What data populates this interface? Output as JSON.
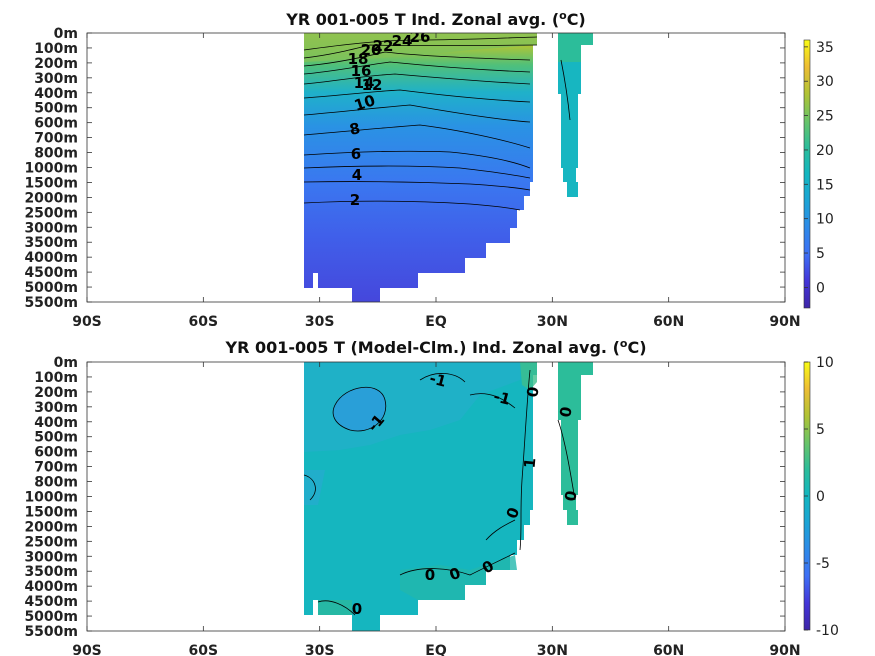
{
  "chart_data": [
    {
      "type": "heatmap",
      "title": "YR 001-005 T Ind. Zonal avg. (",
      "title_unit_sup": "o",
      "title_unit_tail": "C)",
      "x_ticks": [
        "90S",
        "60S",
        "30S",
        "EQ",
        "30N",
        "60N",
        "90N"
      ],
      "y_ticks": [
        "0m",
        "100m",
        "200m",
        "300m",
        "400m",
        "500m",
        "600m",
        "700m",
        "800m",
        "1000m",
        "1500m",
        "2000m",
        "2500m",
        "3000m",
        "3500m",
        "4000m",
        "4500m",
        "5000m",
        "5500m"
      ],
      "colorbar_ticks": [
        "35",
        "30",
        "25",
        "20",
        "15",
        "10",
        "5",
        "0"
      ],
      "clim": [
        -3,
        36
      ],
      "contour_labels": [
        "26",
        "24",
        "22",
        "20",
        "18",
        "16",
        "14",
        "12",
        "10",
        "8",
        "6",
        "4",
        "2"
      ],
      "colormap": [
        "#3e26a8",
        "#4435d8",
        "#3e6ff5",
        "#2e8ae8",
        "#1ca4d5",
        "#13b6c0",
        "#2cbd9a",
        "#6ac468",
        "#b1c334",
        "#edbd34",
        "#f9fb15"
      ]
    },
    {
      "type": "heatmap",
      "title": "YR 001-005 T (Model-Clm.) Ind. Zonal avg. (",
      "title_unit_sup": "o",
      "title_unit_tail": "C)",
      "x_ticks": [
        "90S",
        "60S",
        "30S",
        "EQ",
        "30N",
        "60N",
        "90N"
      ],
      "y_ticks": [
        "0m",
        "100m",
        "200m",
        "300m",
        "400m",
        "500m",
        "600m",
        "700m",
        "800m",
        "1000m",
        "1500m",
        "2000m",
        "2500m",
        "3000m",
        "3500m",
        "4000m",
        "4500m",
        "5000m",
        "5500m"
      ],
      "colorbar_ticks": [
        "10",
        "5",
        "0",
        "-5",
        "-10"
      ],
      "clim": [
        -10,
        10
      ],
      "contour_labels": [
        "-1",
        "-1",
        "-1",
        "0",
        "0",
        "1",
        "0",
        "0",
        "0",
        "0",
        "0",
        "0"
      ],
      "colormap": [
        "#3e26a8",
        "#4435d8",
        "#3e6ff5",
        "#2e8ae8",
        "#1ca4d5",
        "#13b6c0",
        "#2cbd9a",
        "#6ac468",
        "#b1c334",
        "#edbd34",
        "#f9fb15"
      ]
    }
  ]
}
